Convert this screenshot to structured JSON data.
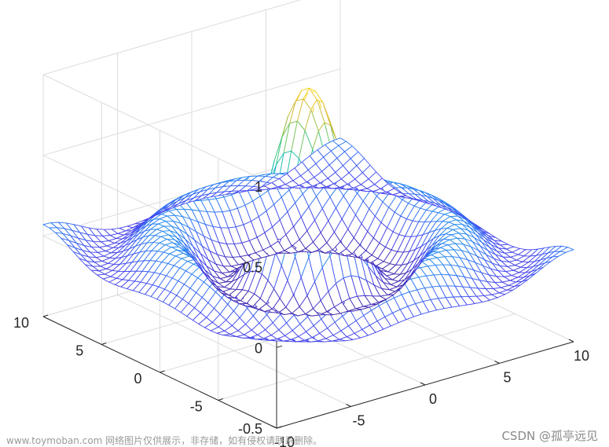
{
  "chart_data": {
    "type": "surface-mesh",
    "function": "z = sin(r)/r, r = sqrt(x^2 + y^2)",
    "x_range": [
      -10,
      10
    ],
    "y_range": [
      -10,
      10
    ],
    "z_range": [
      -0.5,
      1
    ],
    "x_ticks": [
      "-10",
      "-5",
      "0",
      "5",
      "10"
    ],
    "y_ticks": [
      "-5",
      "0",
      "5",
      "10"
    ],
    "z_ticks": [
      "-0.5",
      "0",
      "0.5",
      "1"
    ],
    "grid": true,
    "colormap": "parula",
    "colormap_colors": [
      "#3e26a8",
      "#4747f0",
      "#2b80f4",
      "#1aa9d9",
      "#19bfb4",
      "#48c87a",
      "#a4bd3e",
      "#e8ba2e",
      "#f8e11c"
    ],
    "title": "",
    "xlabel": "",
    "ylabel": "",
    "zlabel": ""
  },
  "watermark": {
    "left": "www.toymoban.com 网络图片仅供展示，非存储，如有侵权请联系删除。",
    "right": "CSDN @孤亭远见"
  }
}
